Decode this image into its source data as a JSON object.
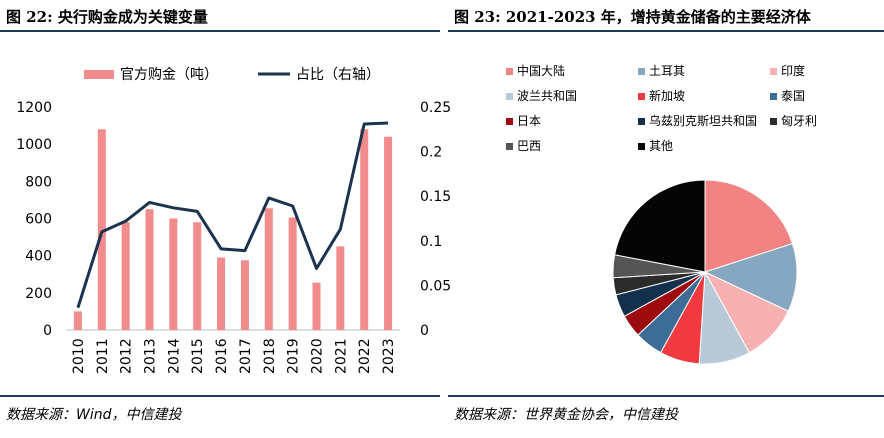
{
  "left": {
    "title": "图 22: 央行购金成为关键变量",
    "source": "数据来源：Wind，中信建投"
  },
  "right": {
    "title": "图 23: 2021-2023 年，增持黄金储备的主要经济体",
    "source": "数据来源：世界黄金协会，中信建投"
  },
  "colors": {
    "bar": "#f28b8b",
    "line": "#1c3350",
    "rule": "#1f3a5f"
  },
  "chart_data": [
    {
      "type": "bar",
      "categories": [
        "2010",
        "2011",
        "2012",
        "2013",
        "2014",
        "2015",
        "2016",
        "2017",
        "2018",
        "2019",
        "2020",
        "2021",
        "2022",
        "2023"
      ],
      "series": [
        {
          "name": "官方购金（吨）",
          "type": "bar",
          "axis": "left",
          "values": [
            100,
            1080,
            580,
            650,
            600,
            580,
            390,
            375,
            655,
            605,
            255,
            450,
            1080,
            1040
          ]
        },
        {
          "name": "占比（右轴）",
          "type": "line",
          "axis": "right",
          "values": [
            0.025,
            0.11,
            0.122,
            0.143,
            0.137,
            0.133,
            0.091,
            0.089,
            0.148,
            0.139,
            0.069,
            0.113,
            0.231,
            0.232
          ]
        }
      ],
      "y_ticks": [
        "0",
        "200",
        "400",
        "600",
        "800",
        "1000",
        "1200"
      ],
      "y2_ticks": [
        "0",
        "0.05",
        "0.1",
        "0.15",
        "0.2",
        "0.25"
      ],
      "ylim": [
        0,
        1200
      ],
      "y2lim": [
        0,
        0.25
      ],
      "legend_position": "top",
      "grid": false
    },
    {
      "type": "pie",
      "legend_position": "top",
      "slices": [
        {
          "label": "中国大陆",
          "value": 20,
          "color": "#f28383"
        },
        {
          "label": "土耳其",
          "value": 12,
          "color": "#86a7c2"
        },
        {
          "label": "印度",
          "value": 10,
          "color": "#f7b1b1"
        },
        {
          "label": "波兰共和国",
          "value": 9,
          "color": "#b8c9d8"
        },
        {
          "label": "新加坡",
          "value": 7,
          "color": "#f03a3f"
        },
        {
          "label": "泰国",
          "value": 5,
          "color": "#3d6c96"
        },
        {
          "label": "日本",
          "value": 4,
          "color": "#9e0b0e"
        },
        {
          "label": "乌兹别克斯坦共和国",
          "value": 4,
          "color": "#13304d"
        },
        {
          "label": "匈牙利",
          "value": 3,
          "color": "#2b2b2b"
        },
        {
          "label": "巴西",
          "value": 4,
          "color": "#555555"
        },
        {
          "label": "其他",
          "value": 22,
          "color": "#050505"
        }
      ]
    }
  ]
}
